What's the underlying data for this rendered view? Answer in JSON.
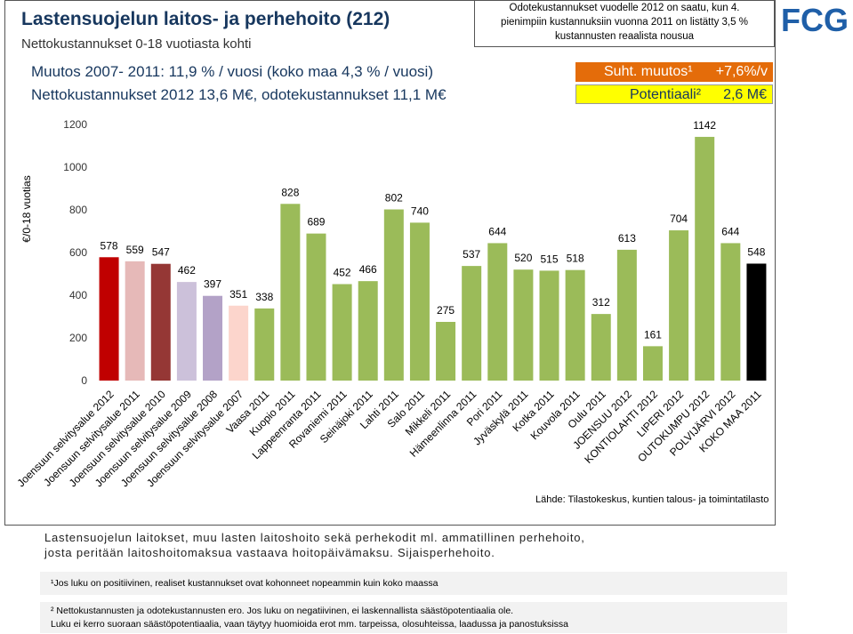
{
  "slide": {
    "title": "Lastensuojelun laitos- ja perhehoito (212)",
    "subtitle": "Nettokustannukset 0-18 vuotiasta kohti",
    "note": [
      "Odotekustannukset vuodelle 2012 on saatu, kun 4.",
      "pienimpiin kustannuksiin vuonna 2011 on listätty 3,5 %",
      "kustannusten reaalista nousua"
    ],
    "logo": "FCG",
    "line1": "Muutos 2007- 2011: 11,9 % / vuosi (koko maa 4,3 % / vuosi)",
    "line2": "Nettokustannukset 2012 13,6 M€, odotekustannukset 11,1 M€",
    "box1_label": "Suht. muutos¹",
    "box1_value": "+7,6%/v",
    "box2_label": "Potentiaali²",
    "box2_value": "2,6 M€",
    "source": "Lähde: Tilastokeskus, kuntien talous- ja toimintatilasto",
    "description": [
      "Lastensuojelun laitokset, muu lasten laitoshoito sekä perhekodit ml. ammatillinen perhehoito,",
      "josta peritään laitoshoitomaksua vastaava hoitopäivämaksu. Sijaisperhehoito."
    ],
    "footnote1": "¹Jos luku on positiivinen, realiset kustannukset ovat kohonneet nopeammin kuin koko maassa",
    "footnote2": [
      "² Nettokustannusten ja odotekustannusten ero. Jos luku on negatiivinen, ei laskennallista säästöpotentiaalia ole.",
      "Luku ei kerro suoraan säästöpotentiaalia, vaan täytyy huomioida erot mm. tarpeissa, olosuhteissa, laadussa ja panostuksissa"
    ]
  },
  "chart_data": {
    "type": "bar",
    "y_label": "€/0-18 vuotias",
    "categories": [
      "Joensuun selvitysalue 2012",
      "Joensuun selvitysalue 2011",
      "Joensuun selvitysalue 2010",
      "Joensuun selvitysalue 2009",
      "Joensuun selvitysalue 2008",
      "Joensuun selvitysalue 2007",
      "Vaasa 2011",
      "Kuopio 2011",
      "Lappeenranta 2011",
      "Rovaniemi 2011",
      "Seinäjoki 2011",
      "Lahti 2011",
      "Salo 2011",
      "Mikkeli 2011",
      "Hämeenlinna 2011",
      "Pori 2011",
      "Jyväskylä 2011",
      "Kotka 2011",
      "Kouvola 2011",
      "Oulu 2011",
      "JOENSUU 2012",
      "KONTIOLAHTI 2012",
      "LIPERI 2012",
      "OUTOKUMPU 2012",
      "POLVIJÄRVI 2012",
      "KOKO MAA 2011"
    ],
    "values": [
      578,
      559,
      547,
      462,
      397,
      351,
      338,
      828,
      689,
      452,
      466,
      802,
      740,
      275,
      537,
      644,
      520,
      515,
      518,
      312,
      613,
      161,
      704,
      1142,
      644,
      548
    ],
    "colors": [
      "#c00000",
      "#e6b9b8",
      "#953735",
      "#ccc1da",
      "#b3a2c7",
      "#fcd5cc",
      "#9bbb59",
      "#9bbb59",
      "#9bbb59",
      "#9bbb59",
      "#9bbb59",
      "#9bbb59",
      "#9bbb59",
      "#9bbb59",
      "#9bbb59",
      "#9bbb59",
      "#9bbb59",
      "#9bbb59",
      "#9bbb59",
      "#9bbb59",
      "#9bbb59",
      "#9bbb59",
      "#9bbb59",
      "#9bbb59",
      "#9bbb59",
      "#000000"
    ],
    "ylim": [
      0,
      1200
    ],
    "yticks": [
      0,
      200,
      400,
      600,
      800,
      1000,
      1200
    ]
  }
}
